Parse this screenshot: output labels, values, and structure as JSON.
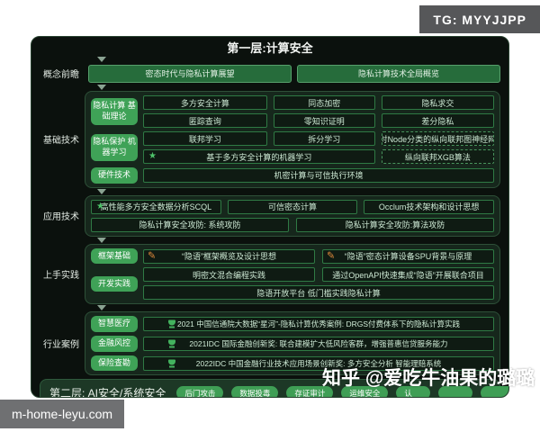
{
  "badges": {
    "tg": "TG: MYYJJPP",
    "site": "m-home-leyu.com"
  },
  "watermark": "知乎 @爱吃牛油果的璐璐",
  "colors": {
    "accent_green": "#3fa257",
    "box_border_green": "#2f7a44",
    "canvas_bg": "#0b110d",
    "pill_green": "#3f9e55"
  },
  "icons": {
    "star": "★",
    "pencil": "✎",
    "trophy": "trophy-cup",
    "section_arrow": "triangle-down"
  },
  "l1": {
    "title": "第一层:计算安全",
    "concept": {
      "rail": "概念前瞻",
      "b1": "密态时代与隐私计算展望",
      "b2": "隐私计算技术全局概览"
    },
    "basic": {
      "rail": "基础技术",
      "g1_label": "隐私计算 基础理论",
      "g1": [
        "多方安全计算",
        "同态加密",
        "隐私求交",
        "匿踪查询",
        "零知识证明",
        "差分隐私"
      ],
      "g2_label": "隐私保护 机器学习",
      "g2r1": [
        "联邦学习",
        "拆分学习",
        "针对Node分类的纵向联邦图神经网络"
      ],
      "g2r2_main": "基于多方安全计算的机器学习",
      "g2r2_side": "纵向联邦XGB算法",
      "g3_label": "硬件技术",
      "g3_box": "机密计算与可信执行环境"
    },
    "applied": {
      "rail": "应用技术",
      "r1": [
        "高性能多方安全数据分析SCQL",
        "可信密态计算",
        "Occlum技术架构和设计思想"
      ],
      "r2": [
        "隐私计算安全攻防: 系统攻防",
        "隐私计算安全攻防:算法攻防"
      ]
    },
    "practice": {
      "rail": "上手实践",
      "g1_label": "框架基础",
      "g1": [
        "“隐语”框架概览及设计思想",
        "“隐语”密态计算设备SPU背景与原理"
      ],
      "g2_label": "开发实践",
      "g2r1": [
        "明密文混合编程实践",
        "通过OpenAPI快速集成“隐语”开展联合项目"
      ],
      "g2r2": "隐语开放平台 低门槛实践隐私计算"
    },
    "industry": {
      "rail": "行业案例",
      "rows": [
        {
          "label": "智慧医疗",
          "text": "2021 中国信通院大数据“星河”-隐私计算优秀案例: DRGS付费体系下的隐私计算实践"
        },
        {
          "label": "金融风控",
          "text": "2021IDC 国际金融创新奖: 联合建模扩大低风险客群，增强普惠信贷服务能力"
        },
        {
          "label": "保险查勘",
          "text": "2022IDC 中国金融行业技术应用场景创新奖: 多方安全分析 智能理赔系统"
        }
      ]
    }
  },
  "l2": {
    "title": "第二层: AI安全/系统安全",
    "pills": [
      "后门攻击",
      "数据投毒",
      "存证审计",
      "运维安全",
      "认",
      "",
      ""
    ]
  }
}
